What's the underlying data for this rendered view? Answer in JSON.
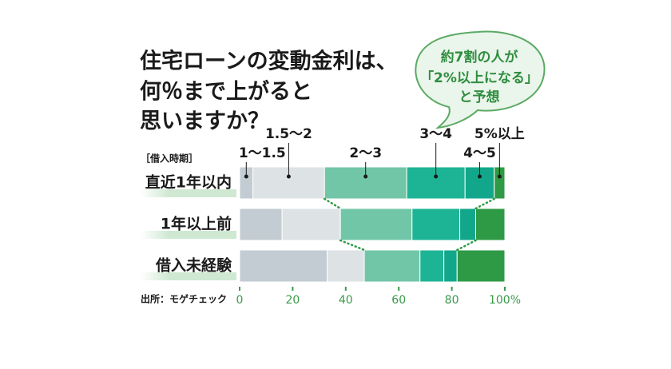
{
  "title": [
    "住宅ローンの変動金利は、",
    "何％まで上がると",
    "思いますか？"
  ],
  "callout": [
    "約7割の人が",
    "「2%以上になる」",
    "と予想"
  ],
  "group_label": "［借入時期］",
  "source": "出所：モゲチェック",
  "chart_data": {
    "type": "stacked-bar",
    "categories": [
      "直近1年以内",
      "1年以上前",
      "借入未経験"
    ],
    "series": [
      {
        "name": "1～1.5",
        "color": "#c3ccd2",
        "values": [
          5,
          16,
          33
        ]
      },
      {
        "name": "1.5～2",
        "color": "#dde2e5",
        "values": [
          27,
          22,
          14
        ]
      },
      {
        "name": "2～3",
        "color": "#72c6a8",
        "values": [
          31,
          27,
          21
        ]
      },
      {
        "name": "3～4",
        "color": "#1db495",
        "values": [
          22,
          18,
          9
        ]
      },
      {
        "name": "4～5",
        "color": "#12a78a",
        "values": [
          11,
          6,
          5
        ]
      },
      {
        "name": "5%以上",
        "color": "#2f9a45",
        "values": [
          4,
          11,
          18
        ]
      }
    ],
    "xlim": [
      0,
      100
    ],
    "xticks": [
      0,
      20,
      40,
      60,
      80,
      {
        "value": 100,
        "label": "100%"
      }
    ]
  }
}
